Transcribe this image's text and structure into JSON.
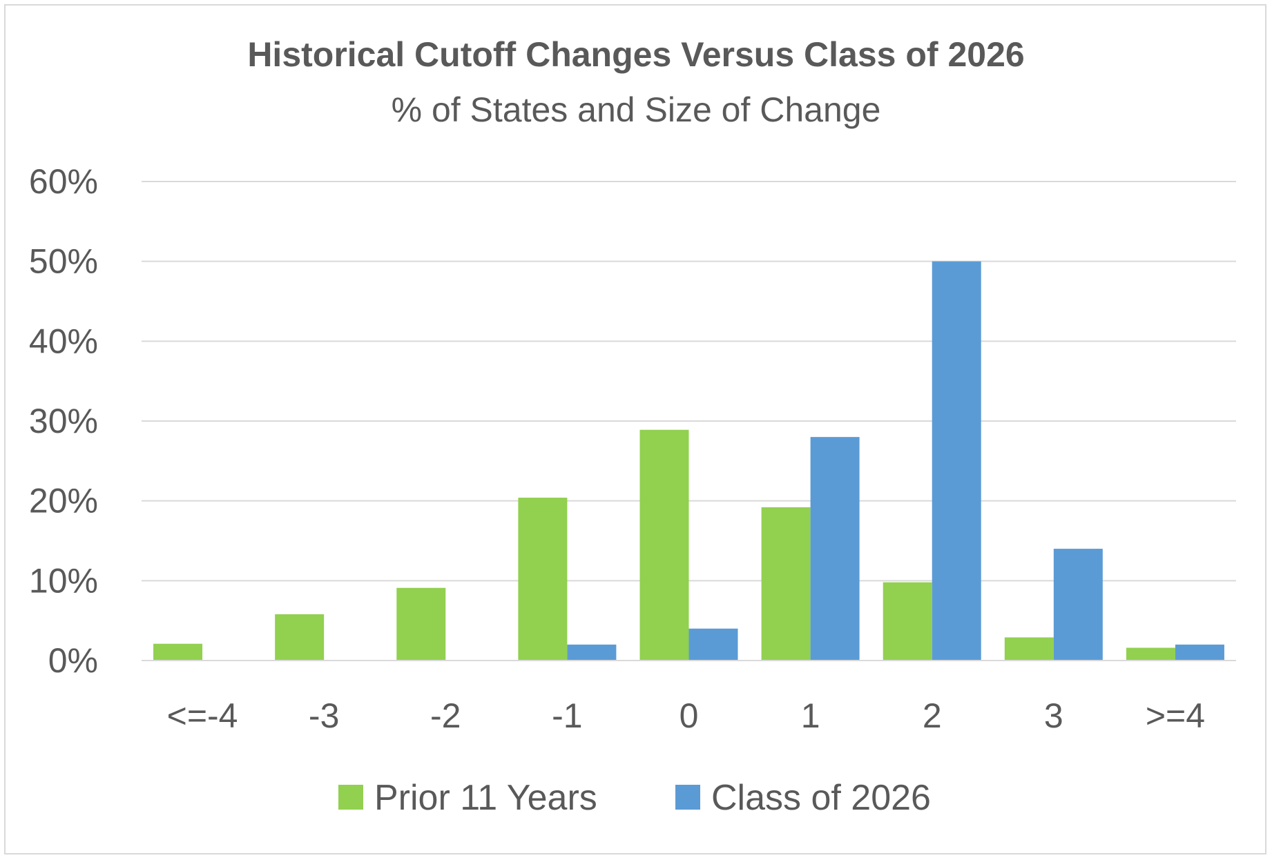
{
  "chart_data": {
    "type": "bar",
    "title": "Historical Cutoff Changes Versus Class of 2026",
    "subtitle": "% of States and Size of Change",
    "categories": [
      "<=-4",
      "-3",
      "-2",
      "-1",
      "0",
      "1",
      "2",
      "3",
      ">=4"
    ],
    "series": [
      {
        "name": "Prior 11 Years",
        "color": "#92d050",
        "values": [
          2.1,
          5.8,
          9.1,
          20.4,
          28.9,
          19.2,
          9.8,
          2.9,
          1.6
        ]
      },
      {
        "name": "Class of 2026",
        "color": "#5b9bd5",
        "values": [
          0,
          0,
          0,
          2.0,
          4.0,
          28.0,
          50.0,
          14.0,
          2.0
        ]
      }
    ],
    "y_ticks": [
      "0%",
      "10%",
      "20%",
      "30%",
      "40%",
      "50%",
      "60%"
    ],
    "ylim": [
      0,
      60
    ],
    "grid": true,
    "legend_position": "bottom",
    "gridline_color": "#d9d9d9",
    "text_color": "#595959"
  }
}
